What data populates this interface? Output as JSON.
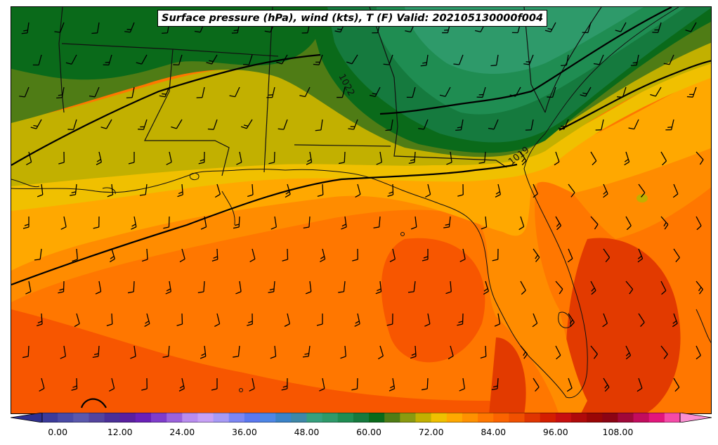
{
  "title": "Surface pressure (hPa), wind (kts), T (F) Valid: 202105130000f004",
  "isobar_labels": [
    "1022",
    "1019"
  ],
  "colorbar": {
    "ticks": [
      "0.00",
      "12.00",
      "24.00",
      "36.00",
      "48.00",
      "60.00",
      "72.00",
      "84.00",
      "96.00",
      "108.00"
    ],
    "tick_values": [
      0,
      12,
      24,
      36,
      48,
      60,
      72,
      84,
      96,
      108
    ],
    "min": -6,
    "max": 123,
    "step": 3,
    "colors": [
      "#2f2f8f",
      "#3b3b9b",
      "#4a4aa6",
      "#5a58ad",
      "#54449e",
      "#4b2f98",
      "#5a1fa0",
      "#6a20b8",
      "#7f3ccc",
      "#9b62dc",
      "#b98cef",
      "#c7a1f6",
      "#a79af6",
      "#7c86f4",
      "#5b78f0",
      "#4d86e6",
      "#3a83c8",
      "#3e88a8",
      "#36a07e",
      "#2e9a6a",
      "#1f8d52",
      "#157a3e",
      "#0a6a1a",
      "#4f7c15",
      "#8a9a10",
      "#c2b000",
      "#f0c000",
      "#ffa800",
      "#ff9100",
      "#ff7700",
      "#fb6300",
      "#f05000",
      "#e03500",
      "#d41e00",
      "#c70f0f",
      "#b00a0a",
      "#9a0606",
      "#8c0414",
      "#a0083a",
      "#c20c5e",
      "#e2167c",
      "#f54aa8",
      "#fb8fd2"
    ]
  },
  "map": {
    "region": "Gulf Coast / Southeast US",
    "field_colors": {
      "t66": "#c2b000",
      "t69": "#f0c000",
      "t72": "#ffa800",
      "t75": "#ff8c00",
      "t78": "#ff7700",
      "t81": "#f75600",
      "t84": "#e23a00",
      "t60": "#4f7c15",
      "t57": "#0a6a1a",
      "t54": "#157a3e",
      "t51": "#1f8d52",
      "t48": "#2e9a6a"
    }
  }
}
